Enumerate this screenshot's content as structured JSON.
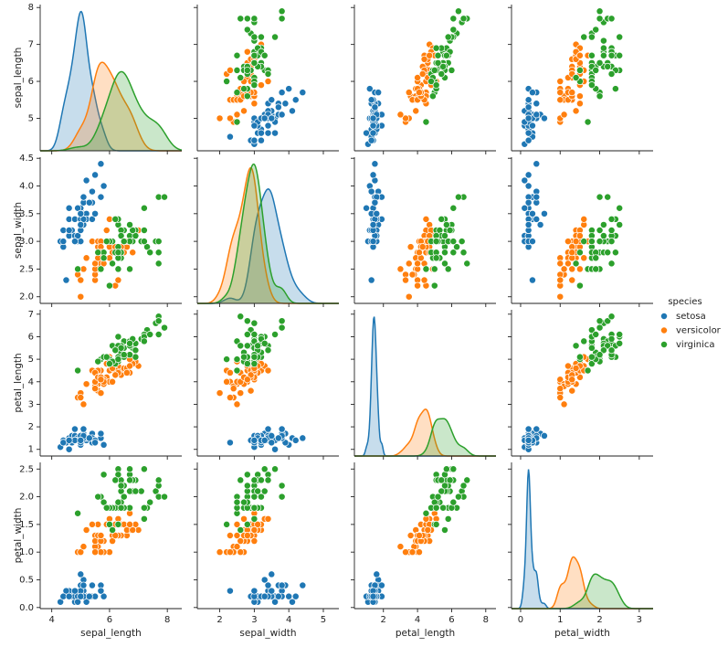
{
  "chart_data": {
    "type": "pairplot",
    "legend_title": "species",
    "variables": [
      {
        "name": "sepal_length",
        "xlim": [
          3.6,
          8.5
        ],
        "xticks": [
          4,
          6,
          8
        ],
        "ylim": [
          4.12,
          8.08
        ],
        "yticks": [
          5,
          6,
          7,
          8
        ]
      },
      {
        "name": "sepal_width",
        "xlim": [
          1.35,
          5.45
        ],
        "xticks": [
          2,
          3,
          4,
          5
        ],
        "ylim": [
          1.88,
          4.52
        ],
        "yticks": [
          {
            "value": 2,
            "label": "2.0"
          },
          2.5,
          {
            "value": 3,
            "label": "3.0"
          },
          3.5,
          {
            "value": 4,
            "label": "4.0"
          },
          4.5
        ]
      },
      {
        "name": "petal_length",
        "xlim": [
          0.3,
          8.6
        ],
        "xticks": [
          2,
          4,
          6,
          8
        ],
        "ylim": [
          0.705,
          7.195
        ],
        "yticks": [
          1,
          2,
          3,
          4,
          5,
          6,
          7
        ]
      },
      {
        "name": "petal_width",
        "xlim": [
          -0.23,
          3.35
        ],
        "xticks": [
          0,
          1,
          2,
          3
        ],
        "ylim": [
          -0.02,
          2.62
        ],
        "yticks": [
          {
            "value": 0,
            "label": "0.0"
          },
          0.5,
          {
            "value": 1,
            "label": "1.0"
          },
          1.5,
          {
            "value": 2,
            "label": "2.0"
          },
          2.5
        ]
      }
    ],
    "series": [
      {
        "name": "setosa",
        "color": "#1f77b4",
        "sepal_length": [
          5.1,
          4.9,
          4.7,
          4.6,
          5.0,
          5.4,
          4.6,
          5.0,
          4.4,
          4.9,
          5.4,
          4.8,
          4.8,
          4.3,
          5.8,
          5.7,
          5.4,
          5.1,
          5.7,
          5.1,
          5.4,
          5.1,
          4.6,
          5.1,
          4.8,
          5.0,
          5.0,
          5.2,
          5.2,
          4.7,
          4.8,
          5.4,
          5.2,
          5.5,
          4.9,
          5.0,
          5.5,
          4.9,
          4.4,
          5.1,
          5.0,
          4.5,
          4.4,
          5.0,
          5.1,
          4.8,
          5.1,
          4.6,
          5.3,
          5.0
        ],
        "sepal_width": [
          3.5,
          3.0,
          3.2,
          3.1,
          3.6,
          3.9,
          3.4,
          3.4,
          2.9,
          3.1,
          3.7,
          3.4,
          3.0,
          3.0,
          4.0,
          4.4,
          3.9,
          3.5,
          3.8,
          3.8,
          3.4,
          3.7,
          3.6,
          3.3,
          3.4,
          3.0,
          3.4,
          3.5,
          3.4,
          3.2,
          3.1,
          3.4,
          4.1,
          4.2,
          3.1,
          3.2,
          3.5,
          3.6,
          3.0,
          3.4,
          3.5,
          2.3,
          3.2,
          3.5,
          3.8,
          3.0,
          3.8,
          3.2,
          3.7,
          3.3
        ],
        "petal_length": [
          1.4,
          1.4,
          1.3,
          1.5,
          1.4,
          1.7,
          1.4,
          1.5,
          1.4,
          1.5,
          1.5,
          1.6,
          1.4,
          1.1,
          1.2,
          1.5,
          1.3,
          1.4,
          1.7,
          1.5,
          1.7,
          1.5,
          1.0,
          1.7,
          1.9,
          1.6,
          1.6,
          1.5,
          1.4,
          1.6,
          1.6,
          1.5,
          1.5,
          1.4,
          1.5,
          1.2,
          1.3,
          1.4,
          1.3,
          1.5,
          1.3,
          1.3,
          1.3,
          1.6,
          1.9,
          1.4,
          1.6,
          1.4,
          1.5,
          1.4
        ],
        "petal_width": [
          0.2,
          0.2,
          0.2,
          0.2,
          0.2,
          0.4,
          0.3,
          0.2,
          0.2,
          0.1,
          0.2,
          0.2,
          0.1,
          0.1,
          0.2,
          0.4,
          0.4,
          0.3,
          0.3,
          0.3,
          0.2,
          0.4,
          0.2,
          0.5,
          0.2,
          0.2,
          0.4,
          0.2,
          0.2,
          0.2,
          0.2,
          0.4,
          0.1,
          0.2,
          0.2,
          0.2,
          0.2,
          0.1,
          0.2,
          0.2,
          0.3,
          0.3,
          0.2,
          0.6,
          0.4,
          0.3,
          0.2,
          0.2,
          0.2,
          0.2
        ]
      },
      {
        "name": "versicolor",
        "color": "#ff7f0e",
        "sepal_length": [
          7.0,
          6.4,
          6.9,
          5.5,
          6.5,
          5.7,
          6.3,
          4.9,
          6.6,
          5.2,
          5.0,
          5.9,
          6.0,
          6.1,
          5.6,
          6.7,
          5.6,
          5.8,
          6.2,
          5.6,
          5.9,
          6.1,
          6.3,
          6.1,
          6.4,
          6.6,
          6.8,
          6.7,
          6.0,
          5.7,
          5.5,
          5.5,
          5.8,
          6.0,
          5.4,
          6.0,
          6.7,
          6.3,
          5.6,
          5.5,
          5.5,
          6.1,
          5.8,
          5.0,
          5.6,
          5.7,
          5.7,
          6.2,
          5.1,
          5.7
        ],
        "sepal_width": [
          3.2,
          3.2,
          3.1,
          2.3,
          2.8,
          2.8,
          3.3,
          2.4,
          2.9,
          2.7,
          2.0,
          3.0,
          2.2,
          2.9,
          2.9,
          3.1,
          3.0,
          2.7,
          2.2,
          2.5,
          3.2,
          2.8,
          2.5,
          2.8,
          2.9,
          3.0,
          2.8,
          3.0,
          2.9,
          2.6,
          2.4,
          2.4,
          2.7,
          2.7,
          3.0,
          3.4,
          3.1,
          2.3,
          3.0,
          2.5,
          2.6,
          3.0,
          2.6,
          2.3,
          2.7,
          3.0,
          2.9,
          2.9,
          2.5,
          2.8
        ],
        "petal_length": [
          4.7,
          4.5,
          4.9,
          4.0,
          4.6,
          4.5,
          4.7,
          3.3,
          4.6,
          3.9,
          3.5,
          4.2,
          4.0,
          4.7,
          3.6,
          4.4,
          4.5,
          4.1,
          4.5,
          3.9,
          4.8,
          4.0,
          4.9,
          4.7,
          4.3,
          4.4,
          4.8,
          5.0,
          4.5,
          3.5,
          3.8,
          3.7,
          3.9,
          5.1,
          4.5,
          4.5,
          4.7,
          4.4,
          4.1,
          4.0,
          4.4,
          4.6,
          4.0,
          3.3,
          4.2,
          4.2,
          4.2,
          4.3,
          3.0,
          4.1
        ],
        "petal_width": [
          1.4,
          1.5,
          1.5,
          1.3,
          1.5,
          1.3,
          1.6,
          1.0,
          1.3,
          1.4,
          1.0,
          1.5,
          1.0,
          1.4,
          1.3,
          1.4,
          1.5,
          1.0,
          1.5,
          1.1,
          1.8,
          1.3,
          1.5,
          1.2,
          1.3,
          1.4,
          1.4,
          1.7,
          1.5,
          1.0,
          1.1,
          1.0,
          1.2,
          1.6,
          1.5,
          1.6,
          1.5,
          1.3,
          1.3,
          1.3,
          1.2,
          1.4,
          1.2,
          1.0,
          1.3,
          1.2,
          1.3,
          1.3,
          1.1,
          1.3
        ]
      },
      {
        "name": "virginica",
        "color": "#2ca02c",
        "sepal_length": [
          6.3,
          5.8,
          7.1,
          6.3,
          6.5,
          7.6,
          4.9,
          7.3,
          6.7,
          7.2,
          6.5,
          6.4,
          6.8,
          5.7,
          5.8,
          6.4,
          6.5,
          7.7,
          7.7,
          6.0,
          6.9,
          5.6,
          7.7,
          6.3,
          6.7,
          7.2,
          6.2,
          6.1,
          6.4,
          7.2,
          7.4,
          7.9,
          6.4,
          6.3,
          6.1,
          7.7,
          6.3,
          6.4,
          6.0,
          6.9,
          6.7,
          6.9,
          5.8,
          6.8,
          6.7,
          6.7,
          6.3,
          6.5,
          6.2,
          5.9
        ],
        "sepal_width": [
          3.3,
          2.7,
          3.0,
          2.9,
          3.0,
          3.0,
          2.5,
          2.9,
          2.5,
          3.6,
          3.2,
          2.7,
          3.0,
          2.5,
          2.8,
          3.2,
          3.0,
          3.8,
          2.6,
          2.2,
          3.2,
          2.8,
          2.8,
          2.7,
          3.3,
          3.2,
          2.8,
          3.0,
          2.8,
          3.0,
          2.8,
          3.8,
          2.8,
          2.8,
          2.6,
          3.0,
          3.4,
          3.1,
          3.0,
          3.1,
          3.1,
          3.1,
          2.7,
          3.2,
          3.3,
          3.0,
          2.5,
          3.0,
          3.4,
          3.0
        ],
        "petal_length": [
          6.0,
          5.1,
          5.9,
          5.6,
          5.8,
          6.6,
          4.5,
          6.3,
          5.8,
          6.1,
          5.1,
          5.3,
          5.5,
          5.0,
          5.1,
          5.3,
          5.5,
          6.7,
          6.9,
          5.0,
          5.7,
          4.9,
          6.7,
          4.9,
          5.7,
          6.0,
          4.8,
          4.9,
          5.6,
          5.8,
          6.1,
          6.4,
          5.6,
          5.1,
          5.6,
          6.1,
          5.6,
          5.5,
          4.8,
          5.4,
          5.6,
          5.1,
          5.1,
          5.9,
          5.7,
          5.2,
          5.0,
          5.2,
          5.4,
          5.1
        ],
        "petal_width": [
          2.5,
          1.9,
          2.1,
          1.8,
          2.2,
          2.1,
          1.7,
          1.8,
          1.8,
          2.5,
          2.0,
          1.9,
          2.1,
          2.0,
          2.4,
          2.3,
          1.8,
          2.2,
          2.3,
          1.5,
          2.3,
          2.0,
          2.0,
          1.8,
          2.1,
          1.8,
          1.8,
          1.8,
          2.1,
          1.6,
          1.9,
          2.0,
          2.2,
          1.5,
          1.4,
          2.3,
          2.4,
          1.8,
          1.8,
          2.1,
          2.4,
          2.3,
          1.9,
          2.3,
          2.5,
          2.3,
          1.9,
          2.0,
          2.3,
          1.8
        ]
      }
    ]
  }
}
